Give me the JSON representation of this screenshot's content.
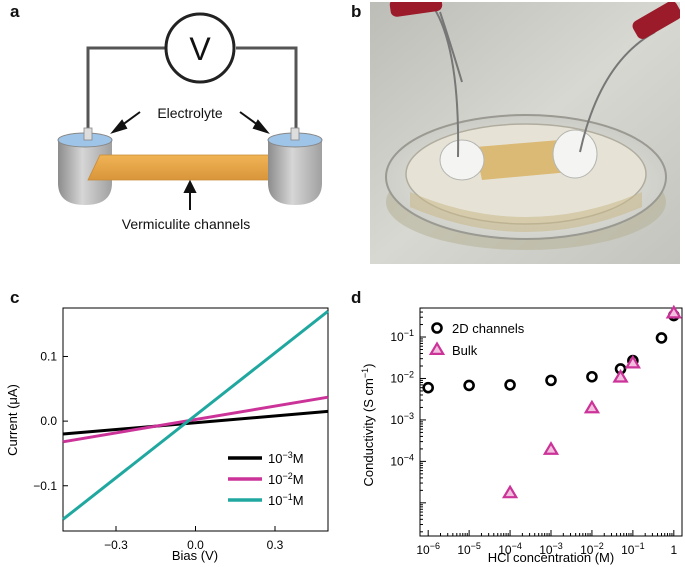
{
  "panel_labels": {
    "a": "a",
    "b": "b",
    "c": "c",
    "d": "d"
  },
  "panel_a": {
    "voltmeter_symbol": "V",
    "electrolyte_label": "Electrolyte",
    "channel_label": "Vermiculite channels",
    "colors": {
      "channel": "#e8a64a",
      "cup": "#b5b5b5",
      "electrolyte": "#9ec4e8",
      "wire": "#555555"
    }
  },
  "panel_b": {
    "description_icon": "photo-of-device-with-electrodes-icon"
  },
  "chart_data": [
    {
      "type": "line",
      "panel": "c",
      "xlabel": "Bias (V)",
      "ylabel": "Current (μA)",
      "xlim": [
        -0.5,
        0.5
      ],
      "ylim": [
        -0.17,
        0.175
      ],
      "xticks": [
        -0.3,
        0.0,
        0.3
      ],
      "xtick_labels": [
        "−0.3",
        "0.0",
        "0.3"
      ],
      "yticks": [
        -0.1,
        0.0,
        0.1
      ],
      "ytick_labels": [
        "−0.1",
        "0.0",
        "0.1"
      ],
      "legend_position": "bottom-right",
      "series": [
        {
          "name": "10⁻³M",
          "label_base": "10",
          "label_exp": "−3",
          "label_unit": "M",
          "color": "#000000",
          "points": [
            [
              -0.5,
              -0.02
            ],
            [
              0.5,
              0.015
            ]
          ]
        },
        {
          "name": "10⁻²M",
          "label_base": "10",
          "label_exp": "−2",
          "label_unit": "M",
          "color": "#cc3399",
          "points": [
            [
              -0.5,
              -0.032
            ],
            [
              0.5,
              0.037
            ]
          ]
        },
        {
          "name": "10⁻¹M",
          "label_base": "10",
          "label_exp": "−1",
          "label_unit": "M",
          "color": "#20a8a0",
          "points": [
            [
              -0.5,
              -0.152
            ],
            [
              0.5,
              0.17
            ]
          ]
        }
      ]
    },
    {
      "type": "scatter",
      "panel": "d",
      "xlabel": "HCl concentration (M)",
      "ylabel_text": "Conductivity (S cm",
      "ylabel_exp": "−1",
      "ylabel_close": ")",
      "xscale": "log",
      "yscale": "log",
      "xlim_log10": [
        -6.2,
        0.2
      ],
      "ylim_log10": [
        -5.8,
        -0.3
      ],
      "xtick_exps": [
        -6,
        -5,
        -4,
        -3,
        -2,
        -1,
        0
      ],
      "xtick_labels": [
        {
          "base": "10",
          "exp": "−6"
        },
        {
          "base": "10",
          "exp": "−5"
        },
        {
          "base": "10",
          "exp": "−4"
        },
        {
          "base": "10",
          "exp": "−3"
        },
        {
          "base": "10",
          "exp": "−2"
        },
        {
          "base": "10",
          "exp": "−1"
        },
        {
          "base": "1",
          "exp": ""
        }
      ],
      "ytick_exps": [
        -4,
        -3,
        -2,
        -1
      ],
      "ytick_labels": [
        {
          "base": "10",
          "exp": "−4"
        },
        {
          "base": "10",
          "exp": "−3"
        },
        {
          "base": "10",
          "exp": "−2"
        },
        {
          "base": "10",
          "exp": "−1"
        }
      ],
      "legend_position": "top-left",
      "series": [
        {
          "name": "2D channels",
          "marker": "circle",
          "color": "#000000",
          "points": [
            [
              1e-06,
              0.006
            ],
            [
              1e-05,
              0.0068
            ],
            [
              0.0001,
              0.007
            ],
            [
              0.001,
              0.009
            ],
            [
              0.01,
              0.011
            ],
            [
              0.05,
              0.017
            ],
            [
              0.1,
              0.027
            ],
            [
              0.5,
              0.095
            ],
            [
              1,
              0.33
            ]
          ]
        },
        {
          "name": "Bulk",
          "marker": "triangle",
          "color": "#cc3399",
          "points": [
            [
              0.0001,
              1.7e-05
            ],
            [
              0.001,
              0.00019
            ],
            [
              0.01,
              0.0019
            ],
            [
              0.05,
              0.0105
            ],
            [
              0.1,
              0.023
            ],
            [
              1,
              0.37
            ]
          ]
        }
      ]
    }
  ]
}
